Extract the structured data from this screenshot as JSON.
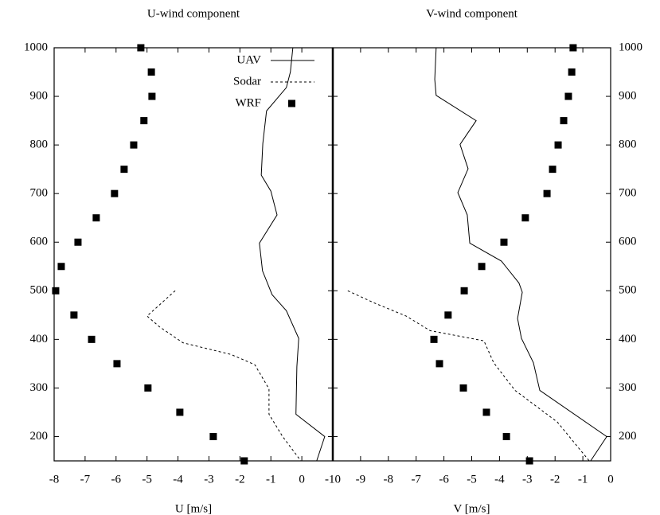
{
  "chart_data": [
    {
      "type": "line",
      "title": "U-wind component",
      "xlabel": "U [m/s]",
      "xlim": [
        -8,
        1
      ],
      "xticks": [
        -8,
        -7,
        -6,
        -5,
        -4,
        -3,
        -2,
        -1,
        0
      ],
      "ylim": [
        150,
        1000
      ],
      "yticks": [
        200,
        300,
        400,
        500,
        600,
        700,
        800,
        900,
        1000
      ],
      "ytick_side": "left",
      "legend": "upper right",
      "series": [
        {
          "name": "UAV",
          "style": "solid",
          "color": "#000000",
          "x": [
            -0.29,
            -0.37,
            -0.5,
            -1.14,
            -1.26,
            -1.31,
            -1.0,
            -0.8,
            -1.37,
            -1.27,
            -0.96,
            -0.5,
            -0.1,
            -0.16,
            -0.19,
            0.74,
            0.48
          ],
          "y": [
            1000,
            950,
            918,
            870,
            803,
            738,
            705,
            656,
            598,
            541,
            492,
            459,
            402,
            344,
            246,
            200,
            150
          ]
        },
        {
          "name": "Sodar",
          "style": "dotted",
          "color": "#000000",
          "x": [
            -4.09,
            -5.0,
            -4.6,
            -3.84,
            -2.29,
            -1.52,
            -1.06,
            -1.06,
            -0.62,
            -0.03
          ],
          "y": [
            500,
            448,
            426,
            393,
            369,
            348,
            298,
            246,
            200,
            150
          ]
        },
        {
          "name": "WRF",
          "style": "points",
          "color": "#000000",
          "x": [
            -5.2,
            -4.86,
            -4.84,
            -5.1,
            -5.43,
            -5.74,
            -6.05,
            -6.64,
            -7.23,
            -7.77,
            -7.95,
            -7.36,
            -6.79,
            -5.97,
            -4.97,
            -3.94,
            -2.86,
            -1.86
          ],
          "y": [
            1000,
            950,
            900,
            850,
            800,
            750,
            700,
            650,
            600,
            550,
            500,
            450,
            400,
            350,
            300,
            250,
            200,
            150
          ]
        }
      ]
    },
    {
      "type": "line",
      "title": "V-wind component",
      "xlabel": "V [m/s]",
      "xlim": [
        -10,
        0
      ],
      "xticks": [
        -10,
        -9,
        -8,
        -7,
        -6,
        -5,
        -4,
        -3,
        -2,
        -1,
        0
      ],
      "ylim": [
        150,
        1000
      ],
      "yticks": [
        200,
        300,
        400,
        500,
        600,
        700,
        800,
        900,
        1000
      ],
      "ytick_side": "right",
      "series": [
        {
          "name": "UAV",
          "style": "solid",
          "color": "#000000",
          "x": [
            -6.28,
            -6.33,
            -6.28,
            -4.84,
            -5.42,
            -5.13,
            -5.5,
            -5.16,
            -5.07,
            -3.93,
            -3.3,
            -3.18,
            -3.35,
            -3.21,
            -2.78,
            -2.55,
            -0.14,
            -0.72
          ],
          "y": [
            1000,
            935,
            902,
            850,
            801,
            751,
            702,
            656,
            598,
            561,
            516,
            497,
            443,
            402,
            352,
            295,
            200,
            150
          ]
        },
        {
          "name": "Sodar",
          "style": "dotted",
          "color": "#000000",
          "x": [
            -9.46,
            -8.51,
            -7.36,
            -6.5,
            -4.56,
            -4.21,
            -3.44,
            -1.92,
            -0.77
          ],
          "y": [
            500,
            475,
            448,
            418,
            397,
            352,
            295,
            230,
            150
          ]
        },
        {
          "name": "WRF",
          "style": "points",
          "color": "#000000",
          "x": [
            -1.35,
            -1.4,
            -1.52,
            -1.69,
            -1.89,
            -2.09,
            -2.29,
            -3.07,
            -3.84,
            -4.64,
            -5.27,
            -5.85,
            -6.36,
            -6.16,
            -5.3,
            -4.47,
            -3.75,
            -2.92
          ],
          "y": [
            1000,
            950,
            900,
            850,
            800,
            750,
            700,
            650,
            600,
            550,
            500,
            450,
            400,
            350,
            300,
            250,
            200,
            150
          ]
        }
      ]
    }
  ]
}
